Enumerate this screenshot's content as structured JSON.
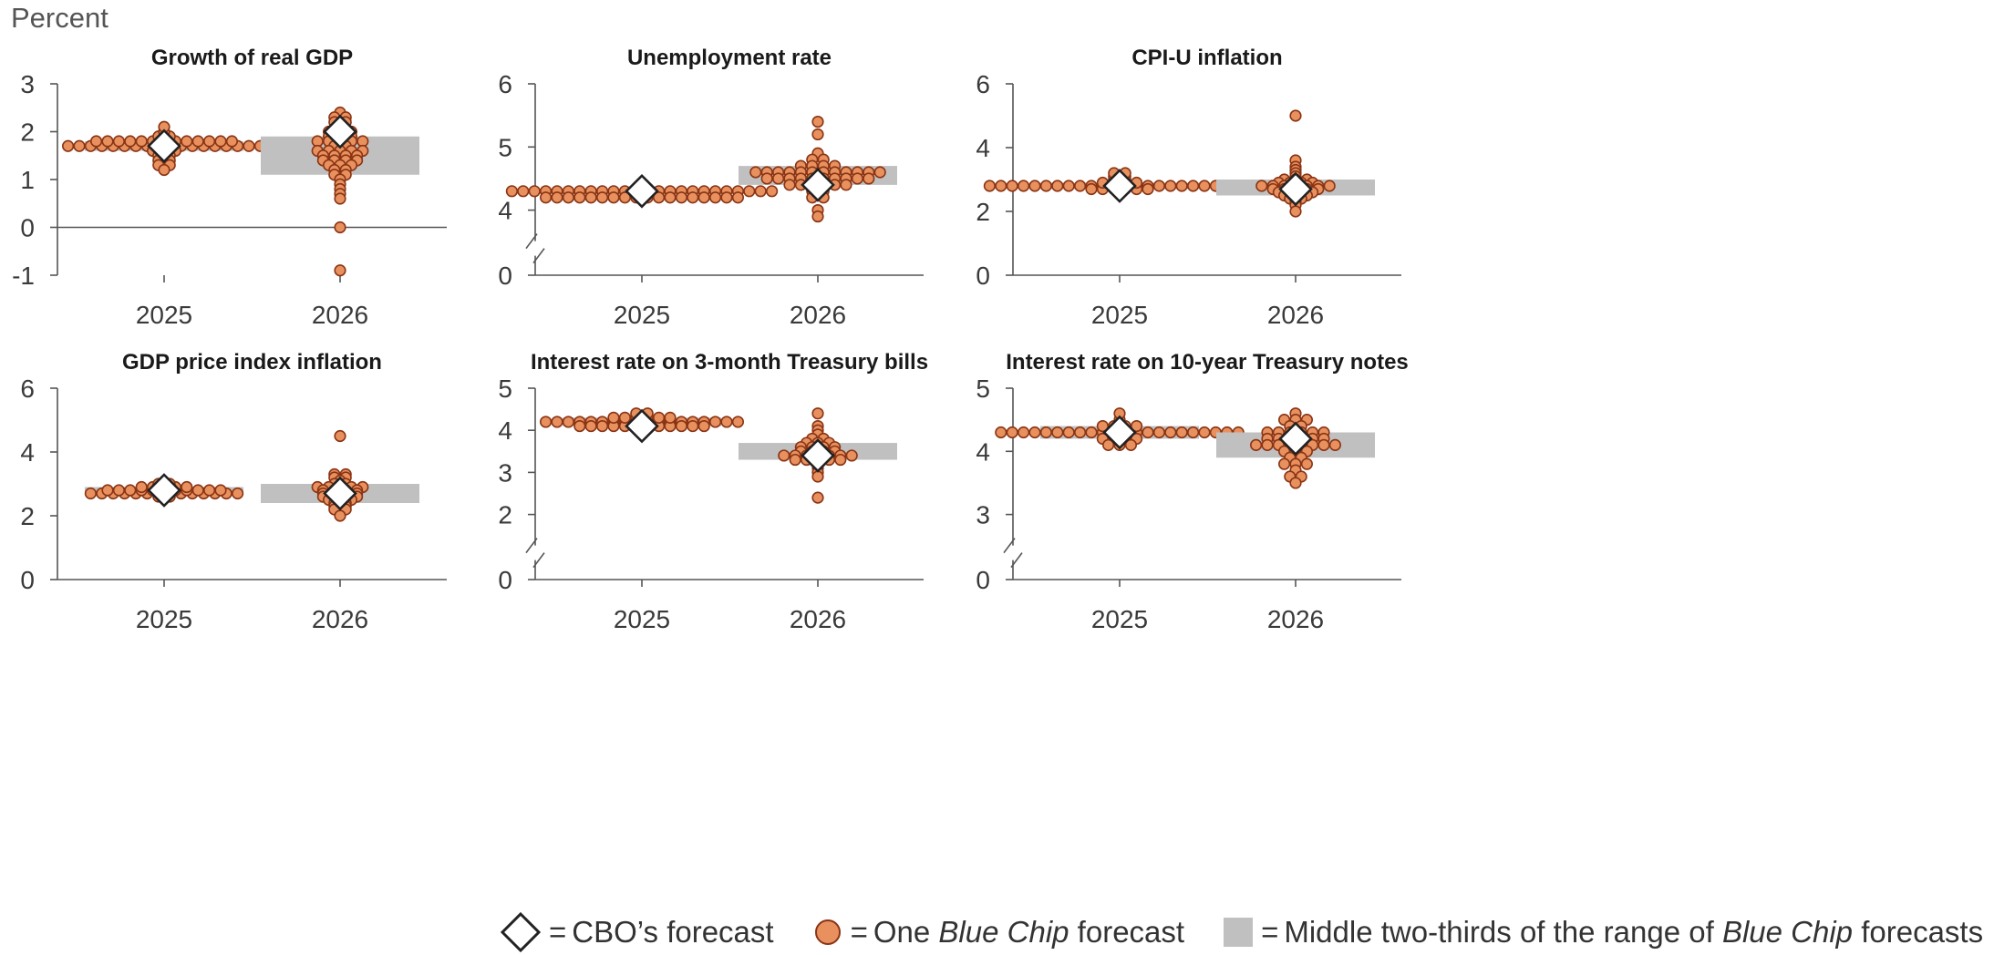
{
  "unit_label": "Percent",
  "colors": {
    "dot_fill": "#e8915f",
    "dot_stroke": "#8a3414",
    "band": "#c0c0c0",
    "axis": "#555555",
    "diamond_fill": "#ffffff",
    "diamond_stroke": "#222222"
  },
  "legend": {
    "eq": "=",
    "cbo": "CBO’s forecast",
    "dot_pre": "One ",
    "dot_em": "Blue Chip",
    "dot_post": " forecast",
    "band_pre": "Middle two-thirds of the range of ",
    "band_em": "Blue Chip",
    "band_post": " forecasts"
  },
  "chart_data": [
    {
      "type": "scatter",
      "title": "Growth of real GDP",
      "categories": [
        "2025",
        "2026"
      ],
      "yticks": [
        "3",
        "2",
        "1",
        "0",
        "-1"
      ],
      "tick_values": [
        3,
        2,
        1,
        0,
        -1
      ],
      "ylim": [
        -1,
        3
      ],
      "axis_break": false,
      "zero_line": true,
      "cbo_forecast": [
        1.7,
        2.0
      ],
      "middle_two_thirds": [
        [
          1.6,
          1.8
        ],
        [
          1.1,
          1.9
        ]
      ],
      "blue_chip": [
        [
          1.7,
          1.7,
          1.7,
          1.7,
          1.7,
          1.7,
          1.7,
          1.7,
          1.7,
          1.7,
          1.7,
          1.7,
          1.7,
          1.7,
          1.7,
          1.7,
          1.8,
          1.8,
          1.8,
          1.8,
          1.8,
          1.8,
          1.8,
          1.8,
          1.8,
          1.8,
          1.8,
          1.8,
          1.9,
          1.9,
          1.6,
          1.6,
          1.6,
          1.5,
          1.5,
          1.4,
          1.4,
          1.3,
          1.3,
          1.2,
          2.0,
          2.1,
          1.8,
          1.7,
          1.7
        ],
        [
          2.4,
          2.3,
          2.3,
          2.2,
          2.2,
          2.1,
          2.0,
          2.0,
          2.0,
          1.9,
          1.9,
          1.9,
          1.8,
          1.8,
          1.8,
          1.8,
          1.8,
          1.7,
          1.7,
          1.6,
          1.6,
          1.6,
          1.6,
          1.6,
          1.5,
          1.5,
          1.5,
          1.5,
          1.4,
          1.4,
          1.4,
          1.4,
          1.3,
          1.3,
          1.3,
          1.2,
          1.2,
          1.1,
          1.1,
          1.0,
          0.9,
          0.8,
          0.7,
          0.6,
          0.0,
          -0.9
        ]
      ]
    },
    {
      "type": "scatter",
      "title": "Unemployment rate",
      "categories": [
        "2025",
        "2026"
      ],
      "yticks": [
        "6",
        "5",
        "4",
        "0"
      ],
      "tick_values": [
        6,
        5,
        4,
        0
      ],
      "ylim": [
        0,
        6
      ],
      "axis_break": true,
      "zero_line": false,
      "cbo_forecast": [
        4.3,
        4.4
      ],
      "middle_two_thirds": [
        [
          4.2,
          4.3
        ],
        [
          4.4,
          4.7
        ]
      ],
      "blue_chip": [
        [
          4.3,
          4.3,
          4.3,
          4.3,
          4.3,
          4.3,
          4.3,
          4.3,
          4.3,
          4.3,
          4.3,
          4.3,
          4.3,
          4.3,
          4.3,
          4.3,
          4.3,
          4.3,
          4.3,
          4.3,
          4.3,
          4.3,
          4.3,
          4.3,
          4.2,
          4.2,
          4.2,
          4.2,
          4.2,
          4.2,
          4.2,
          4.2,
          4.2,
          4.2,
          4.2,
          4.2,
          4.2,
          4.2,
          4.2,
          4.2,
          4.2,
          4.2
        ],
        [
          5.4,
          5.2,
          4.9,
          4.8,
          4.8,
          4.7,
          4.7,
          4.7,
          4.7,
          4.6,
          4.6,
          4.6,
          4.6,
          4.6,
          4.6,
          4.6,
          4.6,
          4.6,
          4.6,
          4.6,
          4.6,
          4.5,
          4.5,
          4.5,
          4.5,
          4.5,
          4.5,
          4.5,
          4.5,
          4.5,
          4.5,
          4.4,
          4.4,
          4.4,
          4.4,
          4.4,
          4.4,
          4.3,
          4.3,
          4.2,
          4.2,
          4.0,
          3.9
        ]
      ]
    },
    {
      "type": "scatter",
      "title": "CPI-U inflation",
      "categories": [
        "2025",
        "2026"
      ],
      "yticks": [
        "6",
        "4",
        "2",
        "0"
      ],
      "tick_values": [
        6,
        4,
        2,
        0
      ],
      "ylim": [
        0,
        6
      ],
      "axis_break": false,
      "zero_line": false,
      "cbo_forecast": [
        2.8,
        2.7
      ],
      "middle_two_thirds": [
        [
          2.7,
          2.9
        ],
        [
          2.5,
          3.0
        ]
      ],
      "blue_chip": [
        [
          2.8,
          2.8,
          2.8,
          2.8,
          2.8,
          2.8,
          2.8,
          2.8,
          2.8,
          2.8,
          2.8,
          2.8,
          2.8,
          2.8,
          2.8,
          2.8,
          2.8,
          2.8,
          2.8,
          2.8,
          2.8,
          2.8,
          2.8,
          2.8,
          2.7,
          2.7,
          2.7,
          2.7,
          2.7,
          2.7,
          2.9,
          2.9,
          2.9,
          2.9,
          3.0,
          3.0,
          3.1,
          3.1,
          3.2,
          3.2
        ],
        [
          5.0,
          3.6,
          3.4,
          3.3,
          3.2,
          3.1,
          3.0,
          3.0,
          3.0,
          2.9,
          2.9,
          2.9,
          2.9,
          2.8,
          2.8,
          2.8,
          2.8,
          2.8,
          2.8,
          2.8,
          2.7,
          2.7,
          2.7,
          2.7,
          2.7,
          2.6,
          2.6,
          2.6,
          2.6,
          2.5,
          2.5,
          2.5,
          2.4,
          2.4,
          2.3,
          2.2,
          2.0
        ]
      ]
    },
    {
      "type": "scatter",
      "title": "GDP price index inflation",
      "categories": [
        "2025",
        "2026"
      ],
      "yticks": [
        "6",
        "4",
        "2",
        "0"
      ],
      "tick_values": [
        6,
        4,
        2,
        0
      ],
      "ylim": [
        0,
        6
      ],
      "axis_break": false,
      "zero_line": false,
      "cbo_forecast": [
        2.8,
        2.7
      ],
      "middle_two_thirds": [
        [
          2.7,
          2.9
        ],
        [
          2.4,
          3.0
        ]
      ],
      "blue_chip": [
        [
          2.7,
          2.7,
          2.7,
          2.7,
          2.7,
          2.7,
          2.7,
          2.7,
          2.7,
          2.7,
          2.7,
          2.7,
          2.7,
          2.7,
          2.8,
          2.8,
          2.8,
          2.8,
          2.8,
          2.8,
          2.8,
          2.8,
          2.8,
          2.8,
          2.8,
          2.9,
          2.9,
          2.9,
          2.9,
          2.9,
          3.0,
          3.0,
          2.6,
          2.6
        ],
        [
          4.5,
          3.3,
          3.3,
          3.2,
          3.2,
          3.1,
          3.0,
          3.0,
          2.9,
          2.9,
          2.9,
          2.9,
          2.9,
          2.8,
          2.8,
          2.8,
          2.8,
          2.7,
          2.7,
          2.7,
          2.7,
          2.6,
          2.6,
          2.6,
          2.6,
          2.5,
          2.5,
          2.5,
          2.4,
          2.4,
          2.3,
          2.3,
          2.2,
          2.2,
          2.0
        ]
      ]
    },
    {
      "type": "scatter",
      "title": "Interest rate on 3-month Treasury bills",
      "categories": [
        "2025",
        "2026"
      ],
      "yticks": [
        "5",
        "4",
        "3",
        "2",
        "0"
      ],
      "tick_values": [
        5,
        4,
        3,
        2,
        0
      ],
      "ylim": [
        0,
        5
      ],
      "axis_break": true,
      "zero_line": false,
      "cbo_forecast": [
        4.1,
        3.4
      ],
      "middle_two_thirds": [
        [
          4.1,
          4.3
        ],
        [
          3.3,
          3.7
        ]
      ],
      "blue_chip": [
        [
          4.2,
          4.2,
          4.2,
          4.2,
          4.2,
          4.2,
          4.2,
          4.2,
          4.2,
          4.2,
          4.2,
          4.2,
          4.2,
          4.2,
          4.2,
          4.2,
          4.2,
          4.2,
          4.1,
          4.1,
          4.1,
          4.1,
          4.1,
          4.1,
          4.1,
          4.1,
          4.1,
          4.1,
          4.1,
          4.1,
          4.3,
          4.3,
          4.3,
          4.3,
          4.3,
          4.3,
          4.4,
          4.4
        ],
        [
          4.4,
          4.1,
          4.0,
          3.9,
          3.8,
          3.8,
          3.7,
          3.7,
          3.7,
          3.6,
          3.6,
          3.6,
          3.6,
          3.5,
          3.5,
          3.5,
          3.5,
          3.4,
          3.4,
          3.4,
          3.4,
          3.4,
          3.4,
          3.4,
          3.3,
          3.3,
          3.3,
          3.3,
          3.3,
          3.2,
          3.1,
          3.0,
          2.9,
          2.4
        ]
      ]
    },
    {
      "type": "scatter",
      "title": "Interest rate on 10-year Treasury notes",
      "categories": [
        "2025",
        "2026"
      ],
      "yticks": [
        "5",
        "4",
        "3",
        "0"
      ],
      "tick_values": [
        5,
        4,
        3,
        0
      ],
      "ylim": [
        0,
        5
      ],
      "axis_break": true,
      "zero_line": false,
      "cbo_forecast": [
        4.3,
        4.2
      ],
      "middle_two_thirds": [
        [
          4.2,
          4.4
        ],
        [
          3.9,
          4.3
        ]
      ],
      "blue_chip": [
        [
          4.3,
          4.3,
          4.3,
          4.3,
          4.3,
          4.3,
          4.3,
          4.3,
          4.3,
          4.3,
          4.3,
          4.3,
          4.3,
          4.3,
          4.3,
          4.3,
          4.3,
          4.3,
          4.3,
          4.3,
          4.3,
          4.3,
          4.4,
          4.4,
          4.4,
          4.4,
          4.2,
          4.2,
          4.2,
          4.2,
          4.1,
          4.1,
          4.1,
          4.5,
          4.6
        ],
        [
          4.6,
          4.5,
          4.5,
          4.5,
          4.4,
          4.4,
          4.3,
          4.3,
          4.3,
          4.3,
          4.3,
          4.3,
          4.2,
          4.2,
          4.2,
          4.2,
          4.2,
          4.2,
          4.1,
          4.1,
          4.1,
          4.1,
          4.1,
          4.1,
          4.1,
          4.1,
          4.0,
          4.0,
          4.0,
          3.9,
          3.9,
          3.8,
          3.8,
          3.8,
          3.7,
          3.6,
          3.6,
          3.5
        ]
      ]
    }
  ]
}
